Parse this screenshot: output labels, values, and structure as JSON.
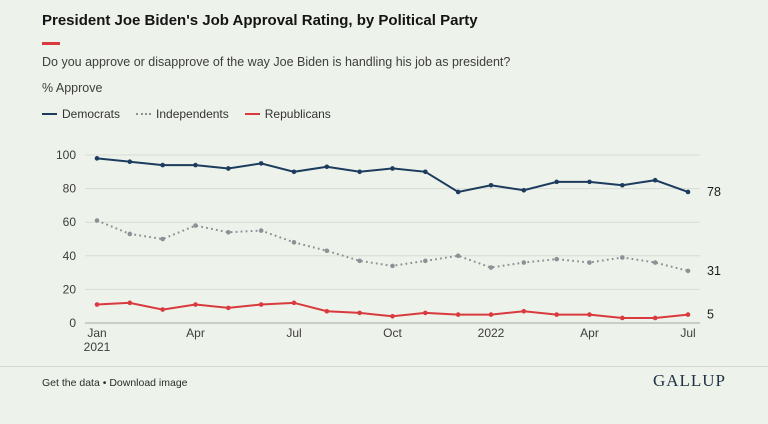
{
  "page": {
    "title": "President Joe Biden's Job Approval Rating, by Political Party",
    "subtitle": "Do you approve or disapprove of the way Joe Biden is handling his job as president?",
    "metric_label": "% Approve"
  },
  "legend": [
    {
      "label": "Democrats",
      "color": "#1c3c5e",
      "style": "solid"
    },
    {
      "label": "Independents",
      "color": "#8c9196",
      "style": "dotted"
    },
    {
      "label": "Republicans",
      "color": "#d93a3e",
      "style": "solid"
    }
  ],
  "footer": {
    "get_data_label": "Get the data",
    "separator": " • ",
    "download_label": "Download image",
    "brand": "GALLUP"
  },
  "colors": {
    "background": "#edf2ea",
    "accent_rule": "#d93a3e",
    "gridline": "#d8dcd4",
    "axis_line": "#a3a9a1"
  },
  "chart_data": {
    "type": "line",
    "title": "President Joe Biden's Job Approval Rating, by Political Party",
    "subtitle": "Do you approve or disapprove of the way Joe Biden is handling his job as president?",
    "ylabel": "% Approve",
    "ylim": [
      0,
      100
    ],
    "yticks": [
      0,
      20,
      40,
      60,
      80,
      100
    ],
    "grid": true,
    "legend_position": "top",
    "x": [
      "Jan 2021",
      "Feb 2021",
      "Mar 2021",
      "Apr 2021",
      "May 2021",
      "Jun 2021",
      "Jul 2021",
      "Aug 2021",
      "Sep 2021",
      "Oct 2021",
      "Nov 2021",
      "Dec 2021",
      "Jan 2022",
      "Feb 2022",
      "Mar 2022",
      "Apr 2022",
      "May 2022",
      "Jun 2022",
      "Jul 2022"
    ],
    "xticks": [
      {
        "index": 0,
        "lines": [
          "Jan",
          "2021"
        ]
      },
      {
        "index": 3,
        "lines": [
          "Apr"
        ]
      },
      {
        "index": 6,
        "lines": [
          "Jul"
        ]
      },
      {
        "index": 9,
        "lines": [
          "Oct"
        ]
      },
      {
        "index": 12,
        "lines": [
          "2022"
        ]
      },
      {
        "index": 15,
        "lines": [
          "Apr"
        ]
      },
      {
        "index": 18,
        "lines": [
          "Jul"
        ]
      }
    ],
    "series": [
      {
        "name": "Democrats",
        "color": "#1c3c5e",
        "style": "solid",
        "values": [
          98,
          96,
          94,
          94,
          92,
          95,
          90,
          93,
          90,
          92,
          90,
          78,
          82,
          79,
          84,
          84,
          82,
          85,
          78
        ],
        "end_label": "78"
      },
      {
        "name": "Independents",
        "color": "#8c9196",
        "style": "dotted",
        "values": [
          61,
          53,
          50,
          58,
          54,
          55,
          48,
          43,
          37,
          34,
          37,
          40,
          33,
          36,
          38,
          36,
          39,
          36,
          31
        ],
        "end_label": "31"
      },
      {
        "name": "Republicans",
        "color": "#d93a3e",
        "style": "solid",
        "values": [
          11,
          12,
          8,
          11,
          9,
          11,
          12,
          7,
          6,
          4,
          6,
          5,
          5,
          7,
          5,
          5,
          3,
          3,
          5
        ],
        "end_label": "5"
      }
    ]
  }
}
